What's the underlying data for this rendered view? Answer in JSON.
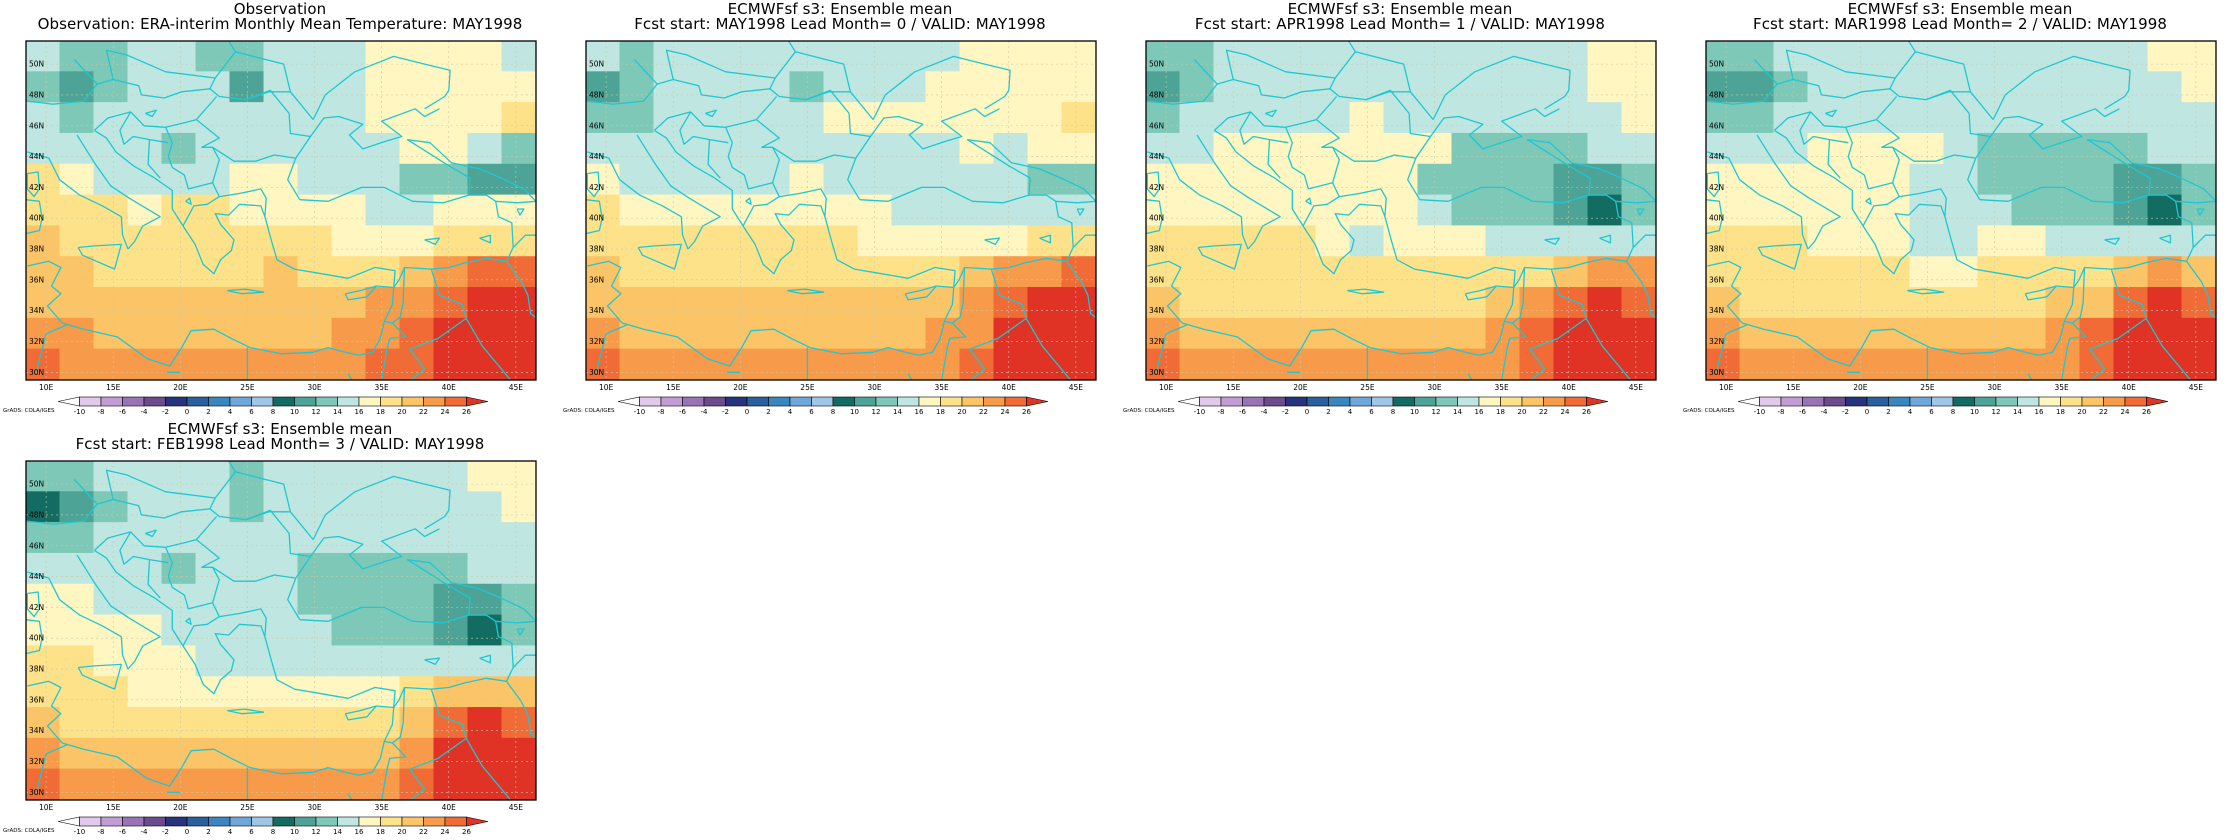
{
  "panels": [
    {
      "title": "Observation",
      "subtitle": "Observation: ERA-interim Monthly Mean Temperature: MAY1998"
    },
    {
      "title": "ECMWFsf s3: Ensemble mean",
      "subtitle": "Fcst start: MAY1998  Lead Month= 0 / VALID: MAY1998"
    },
    {
      "title": "ECMWFsf s3: Ensemble mean",
      "subtitle": "Fcst start: APR1998  Lead Month= 1 / VALID: MAY1998"
    },
    {
      "title": "ECMWFsf s3: Ensemble mean",
      "subtitle": "Fcst start: MAR1998  Lead Month= 2 / VALID: MAY1998"
    },
    {
      "title": "ECMWFsf s3: Ensemble mean",
      "subtitle": "Fcst start: FEB1998  Lead Month= 3 / VALID: MAY1998"
    }
  ],
  "lat_labels": [
    "50N",
    "48N",
    "46N",
    "44N",
    "42N",
    "40N",
    "38N",
    "36N",
    "34N",
    "32N",
    "30N"
  ],
  "lon_labels": [
    "10E",
    "15E",
    "20E",
    "25E",
    "30E",
    "35E",
    "40E",
    "45E"
  ],
  "colorbar": {
    "credit": "GrADS: COLA/IGES",
    "labels": [
      "-10",
      "-8",
      "-6",
      "-4",
      "-2",
      "0",
      "2",
      "4",
      "6",
      "8",
      "10",
      "12",
      "14",
      "16",
      "18",
      "20",
      "22",
      "24",
      "26"
    ],
    "colors": [
      "#ffffff",
      "#e2c8ec",
      "#c39cd6",
      "#9a72b8",
      "#6b4a8e",
      "#27337d",
      "#2c5f9e",
      "#3b86c1",
      "#6ea8d8",
      "#9fc6e6",
      "#136c61",
      "#4da396",
      "#7ec8b8",
      "#bfe6e0",
      "#fff6c2",
      "#fde28a",
      "#fbc466",
      "#f79a4a",
      "#f06b35",
      "#e03225"
    ]
  },
  "panel_fields": [
    [
      [
        "#bfe6e0",
        "#7ec8b8",
        "#7ec8b8",
        "#bfe6e0",
        "#bfe6e0",
        "#7ec8b8",
        "#7ec8b8",
        "#bfe6e0",
        "#bfe6e0",
        "#bfe6e0",
        "#fff6c2",
        "#fff6c2",
        "#fff6c2",
        "#fff6c2",
        "#bfe6e0"
      ],
      [
        "#7ec8b8",
        "#4da396",
        "#7ec8b8",
        "#bfe6e0",
        "#bfe6e0",
        "#bfe6e0",
        "#4da396",
        "#bfe6e0",
        "#bfe6e0",
        "#bfe6e0",
        "#fff6c2",
        "#fff6c2",
        "#fff6c2",
        "#fff6c2",
        "#fff6c2"
      ],
      [
        "#bfe6e0",
        "#7ec8b8",
        "#bfe6e0",
        "#bfe6e0",
        "#bfe6e0",
        "#bfe6e0",
        "#bfe6e0",
        "#bfe6e0",
        "#bfe6e0",
        "#bfe6e0",
        "#fff6c2",
        "#fff6c2",
        "#fff6c2",
        "#fff6c2",
        "#fde28a"
      ],
      [
        "#bfe6e0",
        "#bfe6e0",
        "#bfe6e0",
        "#bfe6e0",
        "#7ec8b8",
        "#bfe6e0",
        "#bfe6e0",
        "#bfe6e0",
        "#bfe6e0",
        "#bfe6e0",
        "#bfe6e0",
        "#fff6c2",
        "#fff6c2",
        "#bfe6e0",
        "#7ec8b8"
      ],
      [
        "#fde28a",
        "#fff6c2",
        "#bfe6e0",
        "#bfe6e0",
        "#bfe6e0",
        "#bfe6e0",
        "#fff6c2",
        "#fff6c2",
        "#bfe6e0",
        "#bfe6e0",
        "#bfe6e0",
        "#7ec8b8",
        "#7ec8b8",
        "#4da396",
        "#4da396"
      ],
      [
        "#fde28a",
        "#fde28a",
        "#fde28a",
        "#fff6c2",
        "#fde28a",
        "#fde28a",
        "#fff6c2",
        "#fff6c2",
        "#fff6c2",
        "#fff6c2",
        "#bfe6e0",
        "#bfe6e0",
        "#fff6c2",
        "#fff6c2",
        "#fff6c2"
      ],
      [
        "#fbc466",
        "#fde28a",
        "#fde28a",
        "#fde28a",
        "#fde28a",
        "#fde28a",
        "#fde28a",
        "#fde28a",
        "#fde28a",
        "#fff6c2",
        "#fff6c2",
        "#fff6c2",
        "#fde28a",
        "#fde28a",
        "#fde28a"
      ],
      [
        "#fbc466",
        "#fbc466",
        "#fde28a",
        "#fde28a",
        "#fde28a",
        "#fde28a",
        "#fde28a",
        "#fbc466",
        "#fde28a",
        "#fde28a",
        "#fde28a",
        "#fbc466",
        "#f79a4a",
        "#f06b35",
        "#f06b35"
      ],
      [
        "#fbc466",
        "#fbc466",
        "#fbc466",
        "#fbc466",
        "#fbc466",
        "#fbc466",
        "#fbc466",
        "#fbc466",
        "#fbc466",
        "#fbc466",
        "#f79a4a",
        "#f79a4a",
        "#f06b35",
        "#e03225",
        "#e03225"
      ],
      [
        "#f79a4a",
        "#f79a4a",
        "#fbc466",
        "#fbc466",
        "#fbc466",
        "#fbc466",
        "#fbc466",
        "#fbc466",
        "#fbc466",
        "#f79a4a",
        "#f79a4a",
        "#f06b35",
        "#e03225",
        "#e03225",
        "#e03225"
      ],
      [
        "#f06b35",
        "#f79a4a",
        "#f79a4a",
        "#f79a4a",
        "#f79a4a",
        "#f79a4a",
        "#f79a4a",
        "#f79a4a",
        "#f79a4a",
        "#f79a4a",
        "#f06b35",
        "#f06b35",
        "#e03225",
        "#e03225",
        "#e03225"
      ]
    ],
    [
      [
        "#bfe6e0",
        "#7ec8b8",
        "#bfe6e0",
        "#bfe6e0",
        "#bfe6e0",
        "#bfe6e0",
        "#bfe6e0",
        "#bfe6e0",
        "#bfe6e0",
        "#bfe6e0",
        "#bfe6e0",
        "#fff6c2",
        "#fff6c2",
        "#fff6c2",
        "#fff6c2"
      ],
      [
        "#4da396",
        "#7ec8b8",
        "#bfe6e0",
        "#bfe6e0",
        "#bfe6e0",
        "#bfe6e0",
        "#7ec8b8",
        "#bfe6e0",
        "#bfe6e0",
        "#bfe6e0",
        "#fff6c2",
        "#fff6c2",
        "#fff6c2",
        "#fff6c2",
        "#fff6c2"
      ],
      [
        "#7ec8b8",
        "#7ec8b8",
        "#bfe6e0",
        "#bfe6e0",
        "#bfe6e0",
        "#bfe6e0",
        "#bfe6e0",
        "#fff6c2",
        "#fff6c2",
        "#fff6c2",
        "#fff6c2",
        "#fff6c2",
        "#fff6c2",
        "#fff6c2",
        "#fde28a"
      ],
      [
        "#bfe6e0",
        "#bfe6e0",
        "#bfe6e0",
        "#bfe6e0",
        "#bfe6e0",
        "#bfe6e0",
        "#bfe6e0",
        "#bfe6e0",
        "#bfe6e0",
        "#bfe6e0",
        "#bfe6e0",
        "#fff6c2",
        "#bfe6e0",
        "#fff6c2",
        "#fff6c2"
      ],
      [
        "#fff6c2",
        "#bfe6e0",
        "#bfe6e0",
        "#bfe6e0",
        "#bfe6e0",
        "#bfe6e0",
        "#fff6c2",
        "#bfe6e0",
        "#bfe6e0",
        "#bfe6e0",
        "#bfe6e0",
        "#bfe6e0",
        "#bfe6e0",
        "#7ec8b8",
        "#7ec8b8"
      ],
      [
        "#fde28a",
        "#fff6c2",
        "#fff6c2",
        "#fff6c2",
        "#fff6c2",
        "#fff6c2",
        "#fff6c2",
        "#fff6c2",
        "#fff6c2",
        "#bfe6e0",
        "#bfe6e0",
        "#bfe6e0",
        "#bfe6e0",
        "#bfe6e0",
        "#bfe6e0"
      ],
      [
        "#fde28a",
        "#fde28a",
        "#fde28a",
        "#fde28a",
        "#fde28a",
        "#fde28a",
        "#fde28a",
        "#fde28a",
        "#fff6c2",
        "#fff6c2",
        "#fff6c2",
        "#fff6c2",
        "#fff6c2",
        "#fde28a",
        "#fde28a"
      ],
      [
        "#fbc466",
        "#fde28a",
        "#fde28a",
        "#fde28a",
        "#fde28a",
        "#fde28a",
        "#fde28a",
        "#fde28a",
        "#fde28a",
        "#fde28a",
        "#fde28a",
        "#fbc466",
        "#f79a4a",
        "#f79a4a",
        "#f06b35"
      ],
      [
        "#fbc466",
        "#fbc466",
        "#fbc466",
        "#fbc466",
        "#fbc466",
        "#fbc466",
        "#fbc466",
        "#fbc466",
        "#fbc466",
        "#fbc466",
        "#fbc466",
        "#f79a4a",
        "#f06b35",
        "#e03225",
        "#e03225"
      ],
      [
        "#f79a4a",
        "#fbc466",
        "#fbc466",
        "#fbc466",
        "#fbc466",
        "#fbc466",
        "#fbc466",
        "#fbc466",
        "#fbc466",
        "#fbc466",
        "#f79a4a",
        "#f79a4a",
        "#e03225",
        "#e03225",
        "#e03225"
      ],
      [
        "#f06b35",
        "#f79a4a",
        "#f79a4a",
        "#f79a4a",
        "#f79a4a",
        "#f79a4a",
        "#f79a4a",
        "#f79a4a",
        "#f79a4a",
        "#f79a4a",
        "#f79a4a",
        "#f06b35",
        "#e03225",
        "#e03225",
        "#e03225"
      ]
    ],
    [
      [
        "#7ec8b8",
        "#7ec8b8",
        "#bfe6e0",
        "#bfe6e0",
        "#bfe6e0",
        "#bfe6e0",
        "#bfe6e0",
        "#bfe6e0",
        "#bfe6e0",
        "#bfe6e0",
        "#bfe6e0",
        "#bfe6e0",
        "#bfe6e0",
        "#fff6c2",
        "#fff6c2"
      ],
      [
        "#4da396",
        "#7ec8b8",
        "#bfe6e0",
        "#bfe6e0",
        "#bfe6e0",
        "#bfe6e0",
        "#bfe6e0",
        "#bfe6e0",
        "#bfe6e0",
        "#bfe6e0",
        "#bfe6e0",
        "#bfe6e0",
        "#bfe6e0",
        "#fff6c2",
        "#fff6c2"
      ],
      [
        "#7ec8b8",
        "#bfe6e0",
        "#bfe6e0",
        "#bfe6e0",
        "#bfe6e0",
        "#bfe6e0",
        "#fff6c2",
        "#bfe6e0",
        "#bfe6e0",
        "#bfe6e0",
        "#bfe6e0",
        "#bfe6e0",
        "#bfe6e0",
        "#bfe6e0",
        "#fff6c2"
      ],
      [
        "#bfe6e0",
        "#bfe6e0",
        "#fff6c2",
        "#fff6c2",
        "#fff6c2",
        "#fff6c2",
        "#fff6c2",
        "#fff6c2",
        "#fff6c2",
        "#7ec8b8",
        "#7ec8b8",
        "#7ec8b8",
        "#7ec8b8",
        "#bfe6e0",
        "#bfe6e0"
      ],
      [
        "#fff6c2",
        "#fff6c2",
        "#fff6c2",
        "#fff6c2",
        "#fff6c2",
        "#fff6c2",
        "#fff6c2",
        "#fff6c2",
        "#7ec8b8",
        "#7ec8b8",
        "#7ec8b8",
        "#7ec8b8",
        "#4da396",
        "#4da396",
        "#7ec8b8"
      ],
      [
        "#fff6c2",
        "#fff6c2",
        "#fff6c2",
        "#fff6c2",
        "#fff6c2",
        "#fff6c2",
        "#fff6c2",
        "#fff6c2",
        "#bfe6e0",
        "#7ec8b8",
        "#7ec8b8",
        "#7ec8b8",
        "#4da396",
        "#136c61",
        "#7ec8b8"
      ],
      [
        "#fde28a",
        "#fde28a",
        "#fde28a",
        "#fde28a",
        "#fde28a",
        "#fff6c2",
        "#bfe6e0",
        "#fff6c2",
        "#fff6c2",
        "#fff6c2",
        "#bfe6e0",
        "#bfe6e0",
        "#bfe6e0",
        "#bfe6e0",
        "#bfe6e0"
      ],
      [
        "#fde28a",
        "#fde28a",
        "#fde28a",
        "#fde28a",
        "#fde28a",
        "#fde28a",
        "#fde28a",
        "#fde28a",
        "#fde28a",
        "#fde28a",
        "#fde28a",
        "#fde28a",
        "#fbc466",
        "#f79a4a",
        "#f79a4a"
      ],
      [
        "#fbc466",
        "#fde28a",
        "#fde28a",
        "#fde28a",
        "#fde28a",
        "#fde28a",
        "#fde28a",
        "#fde28a",
        "#fde28a",
        "#fde28a",
        "#fbc466",
        "#f79a4a",
        "#f06b35",
        "#e03225",
        "#f06b35"
      ],
      [
        "#f79a4a",
        "#fbc466",
        "#fbc466",
        "#fbc466",
        "#fbc466",
        "#fbc466",
        "#fbc466",
        "#fbc466",
        "#fbc466",
        "#fbc466",
        "#f79a4a",
        "#f06b35",
        "#e03225",
        "#e03225",
        "#e03225"
      ],
      [
        "#f06b35",
        "#f79a4a",
        "#f79a4a",
        "#f79a4a",
        "#f79a4a",
        "#f79a4a",
        "#f79a4a",
        "#f79a4a",
        "#f79a4a",
        "#f79a4a",
        "#f79a4a",
        "#f06b35",
        "#e03225",
        "#e03225",
        "#e03225"
      ]
    ],
    [
      [
        "#7ec8b8",
        "#7ec8b8",
        "#bfe6e0",
        "#bfe6e0",
        "#bfe6e0",
        "#bfe6e0",
        "#bfe6e0",
        "#bfe6e0",
        "#bfe6e0",
        "#bfe6e0",
        "#bfe6e0",
        "#bfe6e0",
        "#bfe6e0",
        "#fff6c2",
        "#fff6c2"
      ],
      [
        "#4da396",
        "#4da396",
        "#7ec8b8",
        "#bfe6e0",
        "#bfe6e0",
        "#bfe6e0",
        "#bfe6e0",
        "#bfe6e0",
        "#bfe6e0",
        "#bfe6e0",
        "#bfe6e0",
        "#bfe6e0",
        "#bfe6e0",
        "#bfe6e0",
        "#fff6c2"
      ],
      [
        "#7ec8b8",
        "#7ec8b8",
        "#bfe6e0",
        "#bfe6e0",
        "#bfe6e0",
        "#bfe6e0",
        "#bfe6e0",
        "#bfe6e0",
        "#bfe6e0",
        "#bfe6e0",
        "#bfe6e0",
        "#bfe6e0",
        "#bfe6e0",
        "#bfe6e0",
        "#bfe6e0"
      ],
      [
        "#bfe6e0",
        "#bfe6e0",
        "#bfe6e0",
        "#fff6c2",
        "#fff6c2",
        "#fff6c2",
        "#fff6c2",
        "#bfe6e0",
        "#7ec8b8",
        "#7ec8b8",
        "#7ec8b8",
        "#7ec8b8",
        "#7ec8b8",
        "#bfe6e0",
        "#bfe6e0"
      ],
      [
        "#fff6c2",
        "#fff6c2",
        "#fff6c2",
        "#fff6c2",
        "#fff6c2",
        "#fff6c2",
        "#bfe6e0",
        "#bfe6e0",
        "#7ec8b8",
        "#7ec8b8",
        "#7ec8b8",
        "#7ec8b8",
        "#4da396",
        "#4da396",
        "#7ec8b8"
      ],
      [
        "#fff6c2",
        "#fff6c2",
        "#fff6c2",
        "#fff6c2",
        "#fff6c2",
        "#fff6c2",
        "#bfe6e0",
        "#bfe6e0",
        "#bfe6e0",
        "#7ec8b8",
        "#7ec8b8",
        "#7ec8b8",
        "#4da396",
        "#136c61",
        "#7ec8b8"
      ],
      [
        "#fde28a",
        "#fde28a",
        "#fde28a",
        "#fff6c2",
        "#fff6c2",
        "#fff6c2",
        "#bfe6e0",
        "#bfe6e0",
        "#fff6c2",
        "#fff6c2",
        "#bfe6e0",
        "#bfe6e0",
        "#bfe6e0",
        "#bfe6e0",
        "#bfe6e0"
      ],
      [
        "#fde28a",
        "#fde28a",
        "#fde28a",
        "#fde28a",
        "#fde28a",
        "#fde28a",
        "#fff6c2",
        "#fff6c2",
        "#fde28a",
        "#fde28a",
        "#fde28a",
        "#fde28a",
        "#fbc466",
        "#f79a4a",
        "#fbc466"
      ],
      [
        "#fbc466",
        "#fde28a",
        "#fde28a",
        "#fde28a",
        "#fde28a",
        "#fde28a",
        "#fde28a",
        "#fde28a",
        "#fde28a",
        "#fde28a",
        "#fbc466",
        "#fbc466",
        "#f06b35",
        "#e03225",
        "#f06b35"
      ],
      [
        "#f79a4a",
        "#fbc466",
        "#fbc466",
        "#fbc466",
        "#fbc466",
        "#fbc466",
        "#fbc466",
        "#fbc466",
        "#fbc466",
        "#fbc466",
        "#f79a4a",
        "#f06b35",
        "#e03225",
        "#e03225",
        "#e03225"
      ],
      [
        "#f06b35",
        "#f79a4a",
        "#f79a4a",
        "#f79a4a",
        "#f79a4a",
        "#f79a4a",
        "#f79a4a",
        "#f79a4a",
        "#f79a4a",
        "#f79a4a",
        "#f79a4a",
        "#f06b35",
        "#e03225",
        "#e03225",
        "#e03225"
      ]
    ],
    [
      [
        "#7ec8b8",
        "#7ec8b8",
        "#bfe6e0",
        "#bfe6e0",
        "#bfe6e0",
        "#bfe6e0",
        "#7ec8b8",
        "#bfe6e0",
        "#bfe6e0",
        "#bfe6e0",
        "#bfe6e0",
        "#bfe6e0",
        "#bfe6e0",
        "#fff6c2",
        "#fff6c2"
      ],
      [
        "#136c61",
        "#4da396",
        "#7ec8b8",
        "#bfe6e0",
        "#bfe6e0",
        "#bfe6e0",
        "#7ec8b8",
        "#bfe6e0",
        "#bfe6e0",
        "#bfe6e0",
        "#bfe6e0",
        "#bfe6e0",
        "#bfe6e0",
        "#bfe6e0",
        "#fff6c2"
      ],
      [
        "#7ec8b8",
        "#7ec8b8",
        "#bfe6e0",
        "#bfe6e0",
        "#bfe6e0",
        "#bfe6e0",
        "#bfe6e0",
        "#bfe6e0",
        "#bfe6e0",
        "#bfe6e0",
        "#bfe6e0",
        "#bfe6e0",
        "#bfe6e0",
        "#bfe6e0",
        "#bfe6e0"
      ],
      [
        "#bfe6e0",
        "#bfe6e0",
        "#bfe6e0",
        "#bfe6e0",
        "#7ec8b8",
        "#bfe6e0",
        "#bfe6e0",
        "#bfe6e0",
        "#7ec8b8",
        "#7ec8b8",
        "#7ec8b8",
        "#7ec8b8",
        "#7ec8b8",
        "#bfe6e0",
        "#bfe6e0"
      ],
      [
        "#fff6c2",
        "#fff6c2",
        "#bfe6e0",
        "#bfe6e0",
        "#bfe6e0",
        "#bfe6e0",
        "#bfe6e0",
        "#bfe6e0",
        "#7ec8b8",
        "#7ec8b8",
        "#7ec8b8",
        "#7ec8b8",
        "#4da396",
        "#4da396",
        "#7ec8b8"
      ],
      [
        "#fff6c2",
        "#fff6c2",
        "#fff6c2",
        "#fff6c2",
        "#bfe6e0",
        "#bfe6e0",
        "#bfe6e0",
        "#bfe6e0",
        "#bfe6e0",
        "#7ec8b8",
        "#7ec8b8",
        "#7ec8b8",
        "#4da396",
        "#136c61",
        "#7ec8b8"
      ],
      [
        "#fde28a",
        "#fde28a",
        "#fff6c2",
        "#fff6c2",
        "#fff6c2",
        "#bfe6e0",
        "#bfe6e0",
        "#bfe6e0",
        "#bfe6e0",
        "#bfe6e0",
        "#bfe6e0",
        "#bfe6e0",
        "#bfe6e0",
        "#bfe6e0",
        "#bfe6e0"
      ],
      [
        "#fde28a",
        "#fde28a",
        "#fde28a",
        "#fff6c2",
        "#fff6c2",
        "#fff6c2",
        "#fff6c2",
        "#fff6c2",
        "#fff6c2",
        "#fff6c2",
        "#fff6c2",
        "#fde28a",
        "#fbc466",
        "#fbc466",
        "#fbc466"
      ],
      [
        "#fbc466",
        "#fde28a",
        "#fde28a",
        "#fde28a",
        "#fde28a",
        "#fde28a",
        "#fde28a",
        "#fde28a",
        "#fde28a",
        "#fde28a",
        "#fde28a",
        "#fbc466",
        "#f06b35",
        "#e03225",
        "#f06b35"
      ],
      [
        "#f79a4a",
        "#fbc466",
        "#fbc466",
        "#fbc466",
        "#fbc466",
        "#fbc466",
        "#fbc466",
        "#fbc466",
        "#fbc466",
        "#fbc466",
        "#fbc466",
        "#f79a4a",
        "#e03225",
        "#e03225",
        "#e03225"
      ],
      [
        "#f06b35",
        "#f79a4a",
        "#f79a4a",
        "#f79a4a",
        "#f79a4a",
        "#f79a4a",
        "#f79a4a",
        "#f79a4a",
        "#f79a4a",
        "#f79a4a",
        "#f79a4a",
        "#f06b35",
        "#e03225",
        "#e03225",
        "#e03225"
      ]
    ]
  ]
}
